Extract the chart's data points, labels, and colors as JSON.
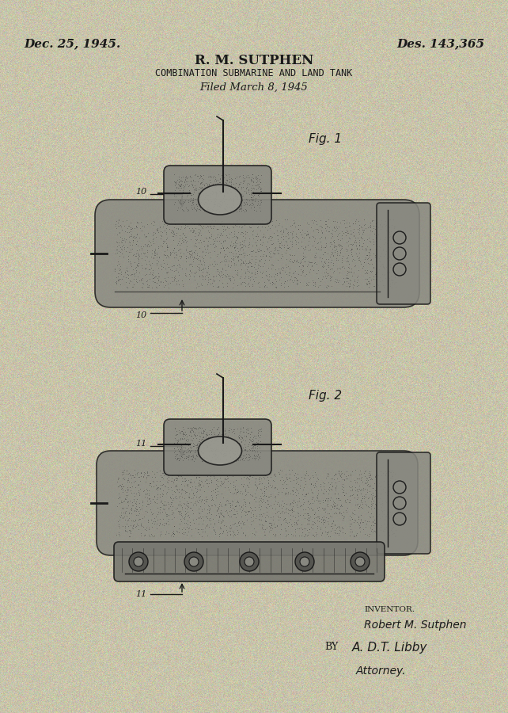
{
  "bg_color": "#c8c4aa",
  "text_color": "#1a1a1a",
  "date_left": "Dec. 25, 1945.",
  "date_right": "Des. 143,365",
  "inventor_name": "R. M. SUTPHEN",
  "subtitle": "COMBINATION SUBMARINE AND LAND TANK",
  "filed": "Filed March 8, 1945",
  "fig1_label": "Fig. 1",
  "fig2_label": "Fig. 2",
  "inventor_label": "INVENTOR.",
  "inventor_sig": "Robert M. Sutphen",
  "by_label": "BY",
  "attorney_sig": "A. D.T. Libby",
  "attorney_label": "Attorney."
}
